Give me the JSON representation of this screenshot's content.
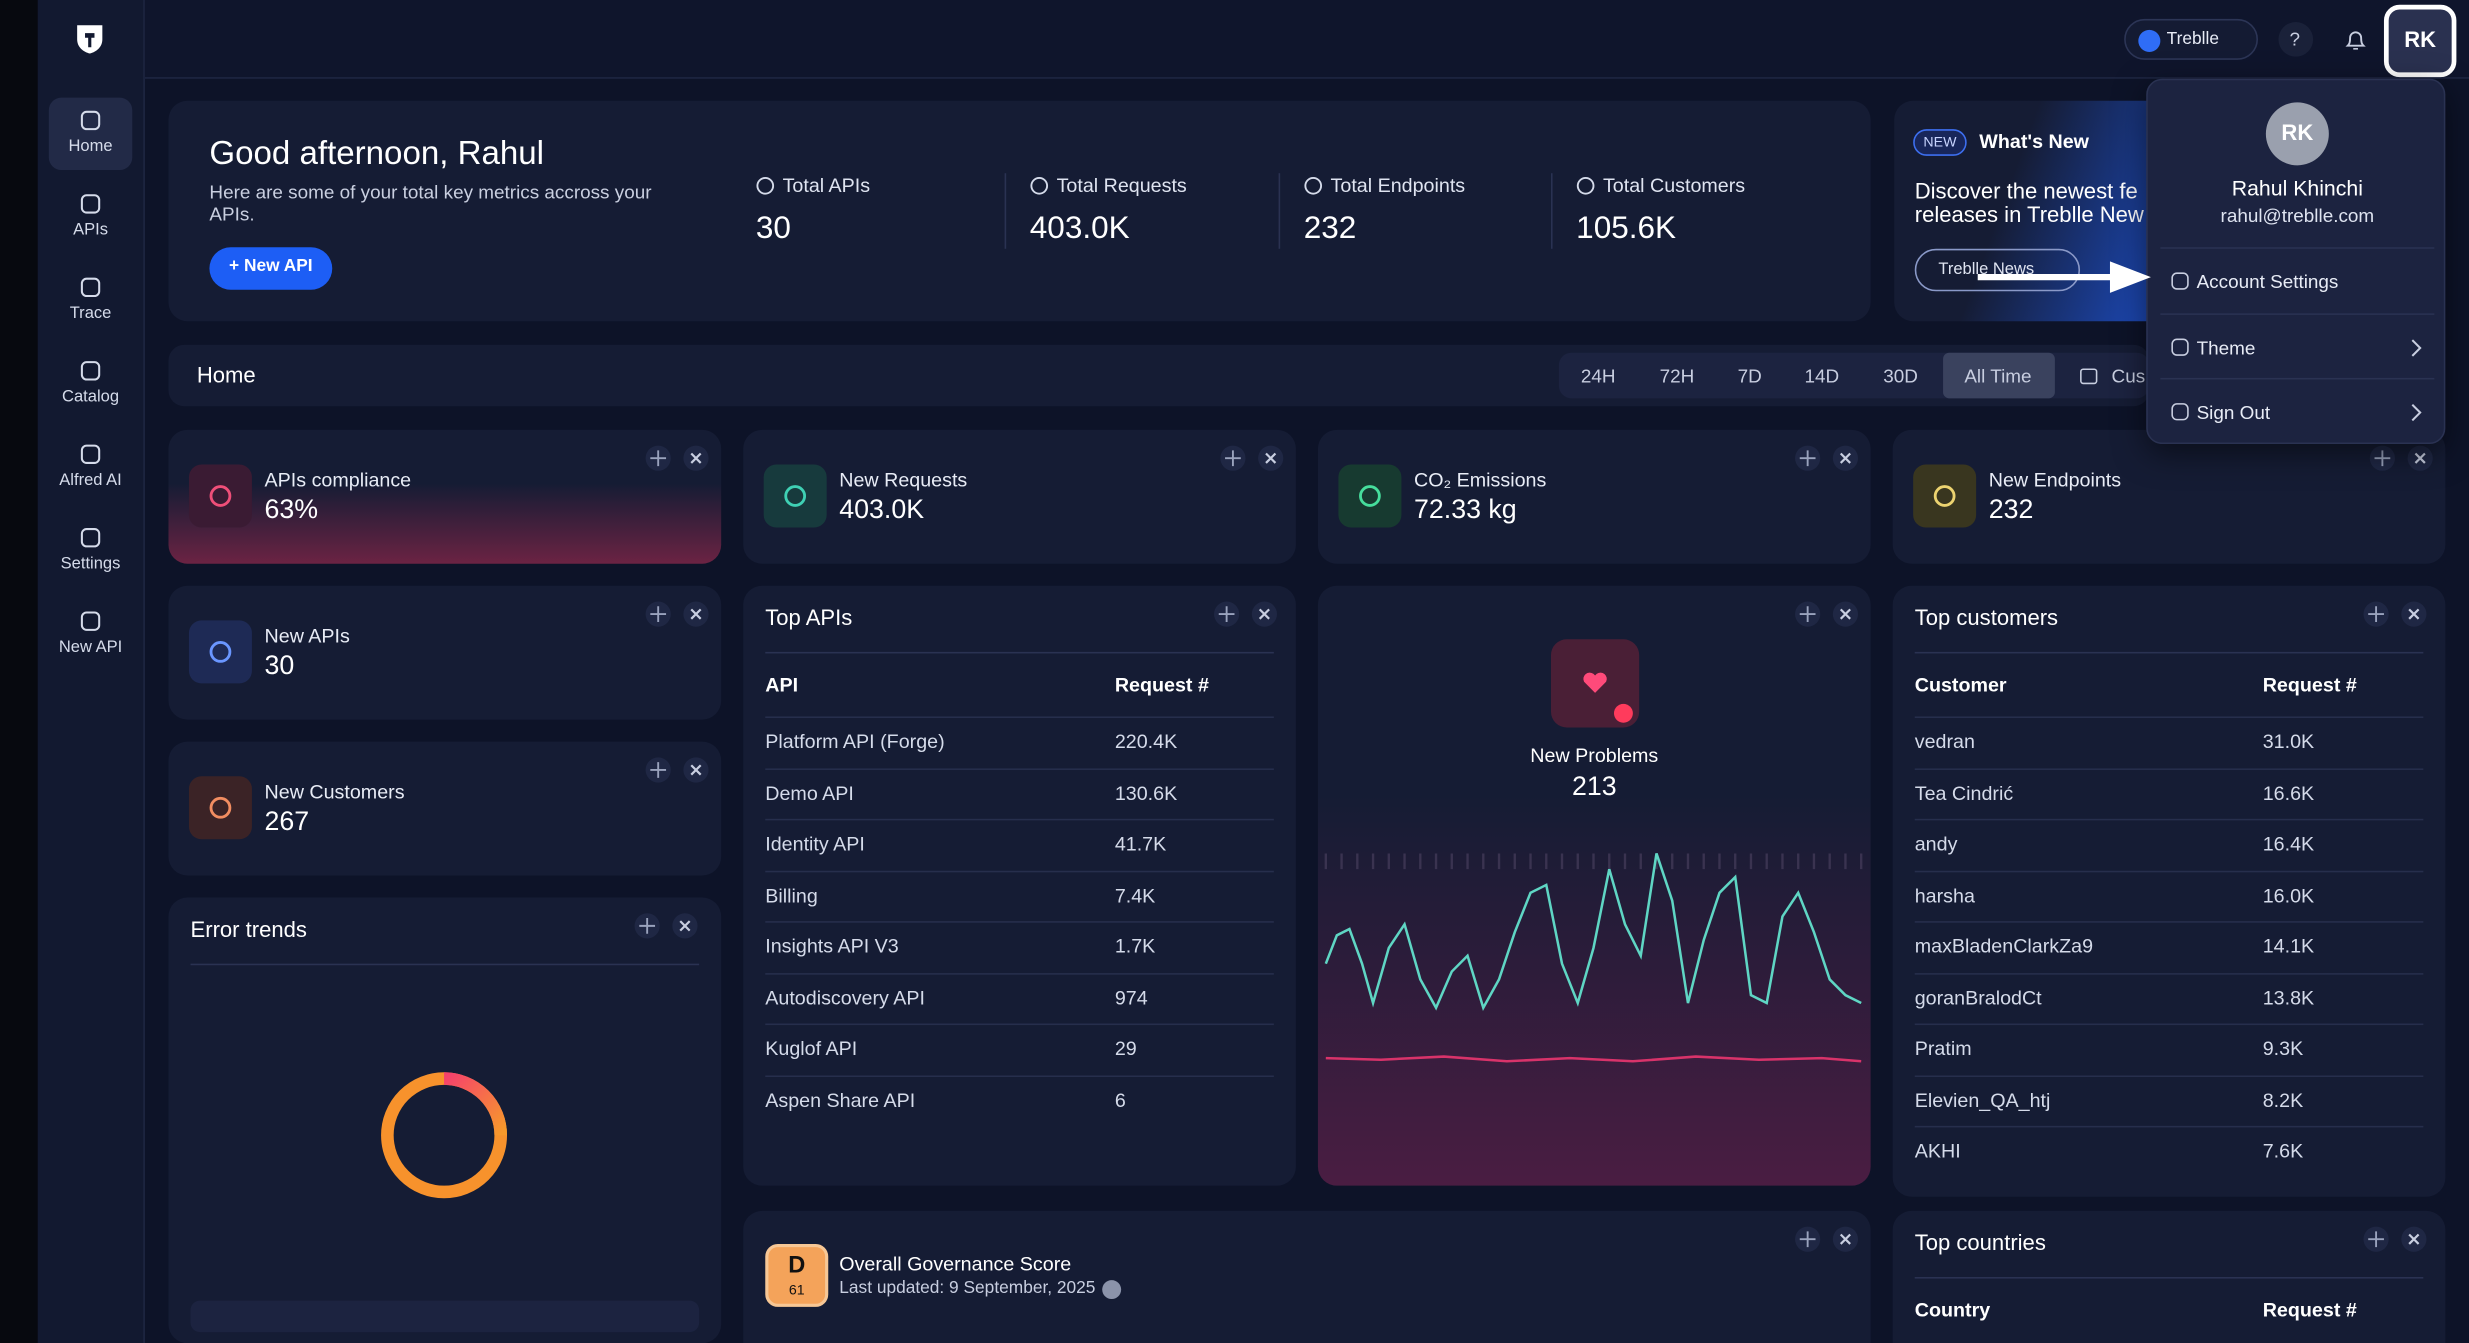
{
  "sidebar": {
    "nav": [
      "Home",
      "APIs",
      "Trace",
      "Catalog",
      "Alfred AI",
      "Settings",
      "New API"
    ]
  },
  "topbar": {
    "workspace": "Treblle",
    "help": "?",
    "avatar": "RK"
  },
  "welcome": {
    "title": "Good afternoon, Rahul",
    "subtitle": "Here are some of your total key metrics accross your APIs.",
    "button": "+ New API",
    "metrics": [
      {
        "label": "Total APIs",
        "value": "30"
      },
      {
        "label": "Total Requests",
        "value": "403.0K"
      },
      {
        "label": "Total Endpoints",
        "value": "232"
      },
      {
        "label": "Total Customers",
        "value": "105.6K"
      }
    ]
  },
  "whats_new": {
    "badge": "NEW",
    "title": "What's New",
    "text": [
      "Discover the newest fe",
      "releases in Treblle New"
    ],
    "button": "Treblle News"
  },
  "toolbar": {
    "title": "Home",
    "ranges": [
      "24H",
      "72H",
      "7D",
      "14D",
      "30D",
      "All Time",
      "Cus"
    ]
  },
  "stat_cards": [
    {
      "label": "APIs compliance",
      "value": "63%"
    },
    {
      "label": "New Requests",
      "value": "403.0K"
    },
    {
      "label": "CO₂ Emissions",
      "value": "72.33 kg"
    },
    {
      "label": "New Endpoints",
      "value": "232"
    },
    {
      "label": "New APIs",
      "value": "30"
    },
    {
      "label": "New Customers",
      "value": "267"
    }
  ],
  "error_trends": {
    "title": "Error trends"
  },
  "top_apis": {
    "title": "Top APIs",
    "header": [
      "API",
      "Request #"
    ],
    "rows": [
      [
        "Platform API (Forge)",
        "220.4K"
      ],
      [
        "Demo API",
        "130.6K"
      ],
      [
        "Identity API",
        "41.7K"
      ],
      [
        "Billing",
        "7.4K"
      ],
      [
        "Insights API V3",
        "1.7K"
      ],
      [
        "Autodiscovery API",
        "974"
      ],
      [
        "Kuglof API",
        "29"
      ],
      [
        "Aspen Share API",
        "6"
      ]
    ]
  },
  "new_problems": {
    "label": "New Problems",
    "value": "213"
  },
  "top_customers": {
    "title": "Top customers",
    "header": [
      "Customer",
      "Request #"
    ],
    "rows": [
      [
        "vedran",
        "31.0K"
      ],
      [
        "Tea Cindrić",
        "16.6K"
      ],
      [
        "andy",
        "16.4K"
      ],
      [
        "harsha",
        "16.0K"
      ],
      [
        "maxBladenClarkZa9",
        "14.1K"
      ],
      [
        "goranBralodCt",
        "13.8K"
      ],
      [
        "Pratim",
        "9.3K"
      ],
      [
        "Elevien_QA_htj",
        "8.2K"
      ],
      [
        "AKHI",
        "7.6K"
      ]
    ]
  },
  "governance": {
    "grade": "D",
    "score": "61",
    "title": "Overall Governance Score",
    "updated": "Last updated: 9 September, 2025"
  },
  "top_countries": {
    "title": "Top countries",
    "header": [
      "Country",
      "Request #"
    ]
  },
  "profile_menu": {
    "initials": "RK",
    "name": "Rahul Khinchi",
    "email": "rahul@treblle.com",
    "items": [
      "Account Settings",
      "Theme",
      "Sign Out"
    ]
  }
}
